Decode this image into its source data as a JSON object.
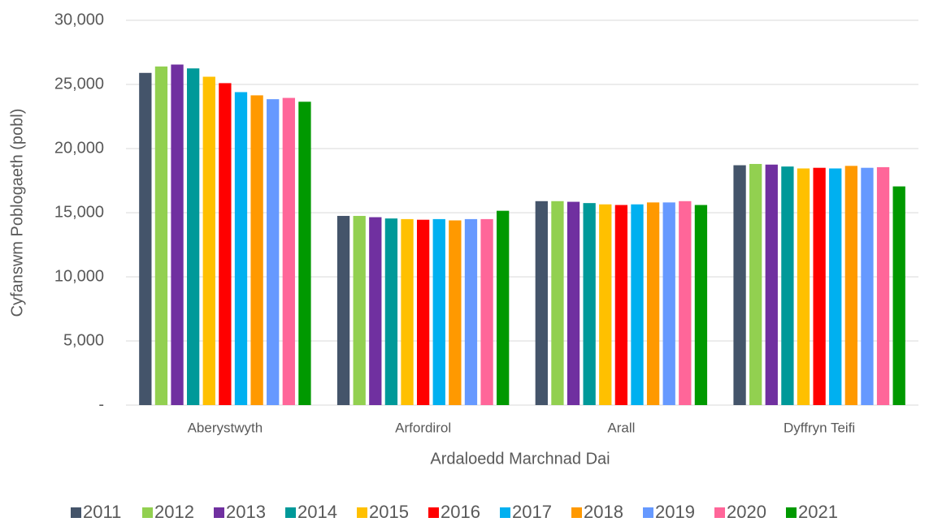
{
  "chart_data": {
    "type": "bar",
    "x_label": "Ardaloedd Marchnad Dai",
    "y_label": "Cyfanswm Poblogaeth (pobl)",
    "categories": [
      "Aberystwyth",
      "Arfordirol",
      "Arall",
      "Dyffryn Teifi"
    ],
    "series": [
      {
        "name": "2011",
        "color": "#44546a",
        "values": [
          25900,
          14750,
          15900,
          18700
        ]
      },
      {
        "name": "2012",
        "color": "#92d050",
        "values": [
          26400,
          14750,
          15900,
          18800
        ]
      },
      {
        "name": "2013",
        "color": "#7030a0",
        "values": [
          26550,
          14650,
          15850,
          18750
        ]
      },
      {
        "name": "2014",
        "color": "#009999",
        "values": [
          26250,
          14550,
          15750,
          18600
        ]
      },
      {
        "name": "2015",
        "color": "#ffc000",
        "values": [
          25600,
          14500,
          15650,
          18450
        ]
      },
      {
        "name": "2016",
        "color": "#ff0000",
        "values": [
          25100,
          14450,
          15600,
          18500
        ]
      },
      {
        "name": "2017",
        "color": "#00b0f0",
        "values": [
          24400,
          14500,
          15650,
          18450
        ]
      },
      {
        "name": "2018",
        "color": "#ff9900",
        "values": [
          24150,
          14400,
          15800,
          18650
        ]
      },
      {
        "name": "2019",
        "color": "#6699ff",
        "values": [
          23850,
          14500,
          15800,
          18500
        ]
      },
      {
        "name": "2020",
        "color": "#ff6699",
        "values": [
          23950,
          14500,
          15900,
          18550
        ]
      },
      {
        "name": "2021",
        "color": "#009900",
        "values": [
          23650,
          15150,
          15600,
          17050
        ]
      }
    ],
    "ylim": [
      0,
      30000
    ],
    "yticks": [
      {
        "value": 0,
        "label": "-"
      },
      {
        "value": 5000,
        "label": "5,000"
      },
      {
        "value": 10000,
        "label": "10,000"
      },
      {
        "value": 15000,
        "label": "15,000"
      },
      {
        "value": 20000,
        "label": "20,000"
      },
      {
        "value": 25000,
        "label": "25,000"
      },
      {
        "value": 30000,
        "label": "30,000"
      }
    ],
    "grid": true,
    "legend": "bottom"
  }
}
